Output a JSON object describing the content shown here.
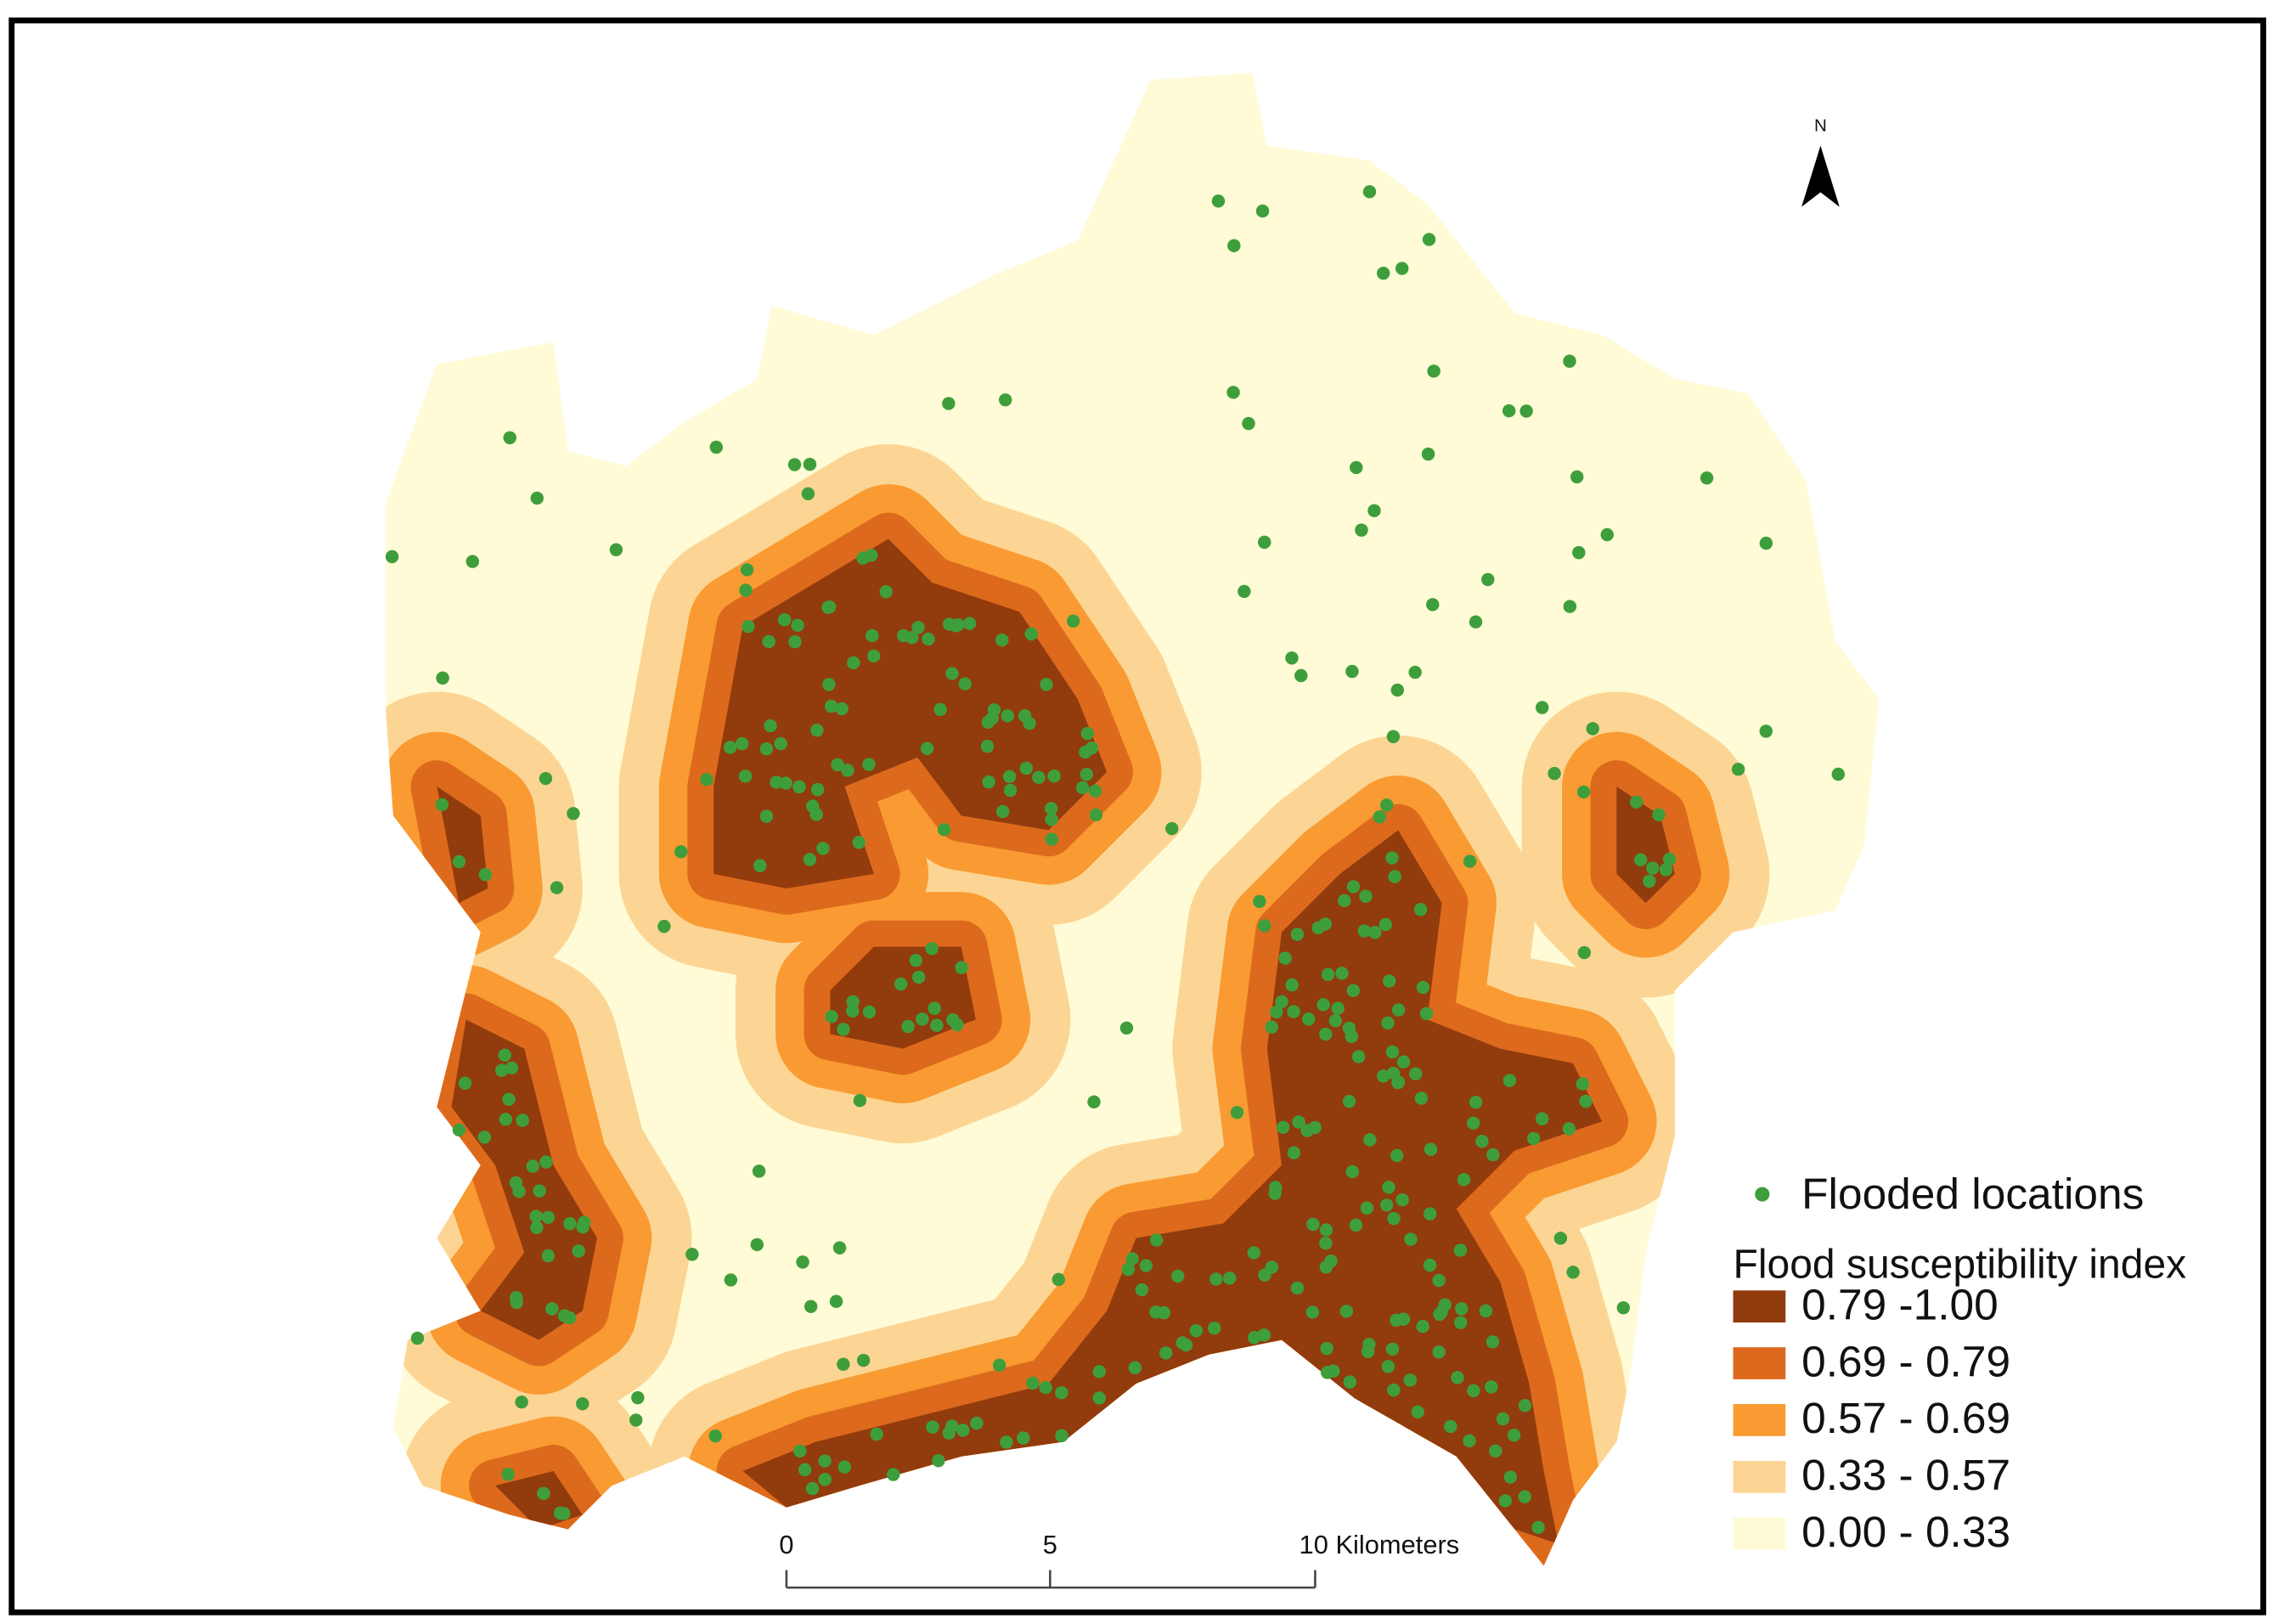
{
  "north": "N",
  "legend": {
    "points": {
      "label": "Flooded locations",
      "color": "#3f9e3c"
    },
    "title": "Flood susceptibility index",
    "classes": [
      {
        "label": "0.79 -1.00",
        "color": "#923b0d"
      },
      {
        "label": "0.69 - 0.79",
        "color": "#dd6a1c"
      },
      {
        "label": "0.57 - 0.69",
        "color": "#f99b32"
      },
      {
        "label": "0.33 - 0.57",
        "color": "#fcd594"
      },
      {
        "label": "0.00 - 0.33",
        "color": "#fefbd6"
      }
    ]
  },
  "scale": {
    "labels": [
      "0",
      "5",
      "10 Kilometers"
    ]
  }
}
